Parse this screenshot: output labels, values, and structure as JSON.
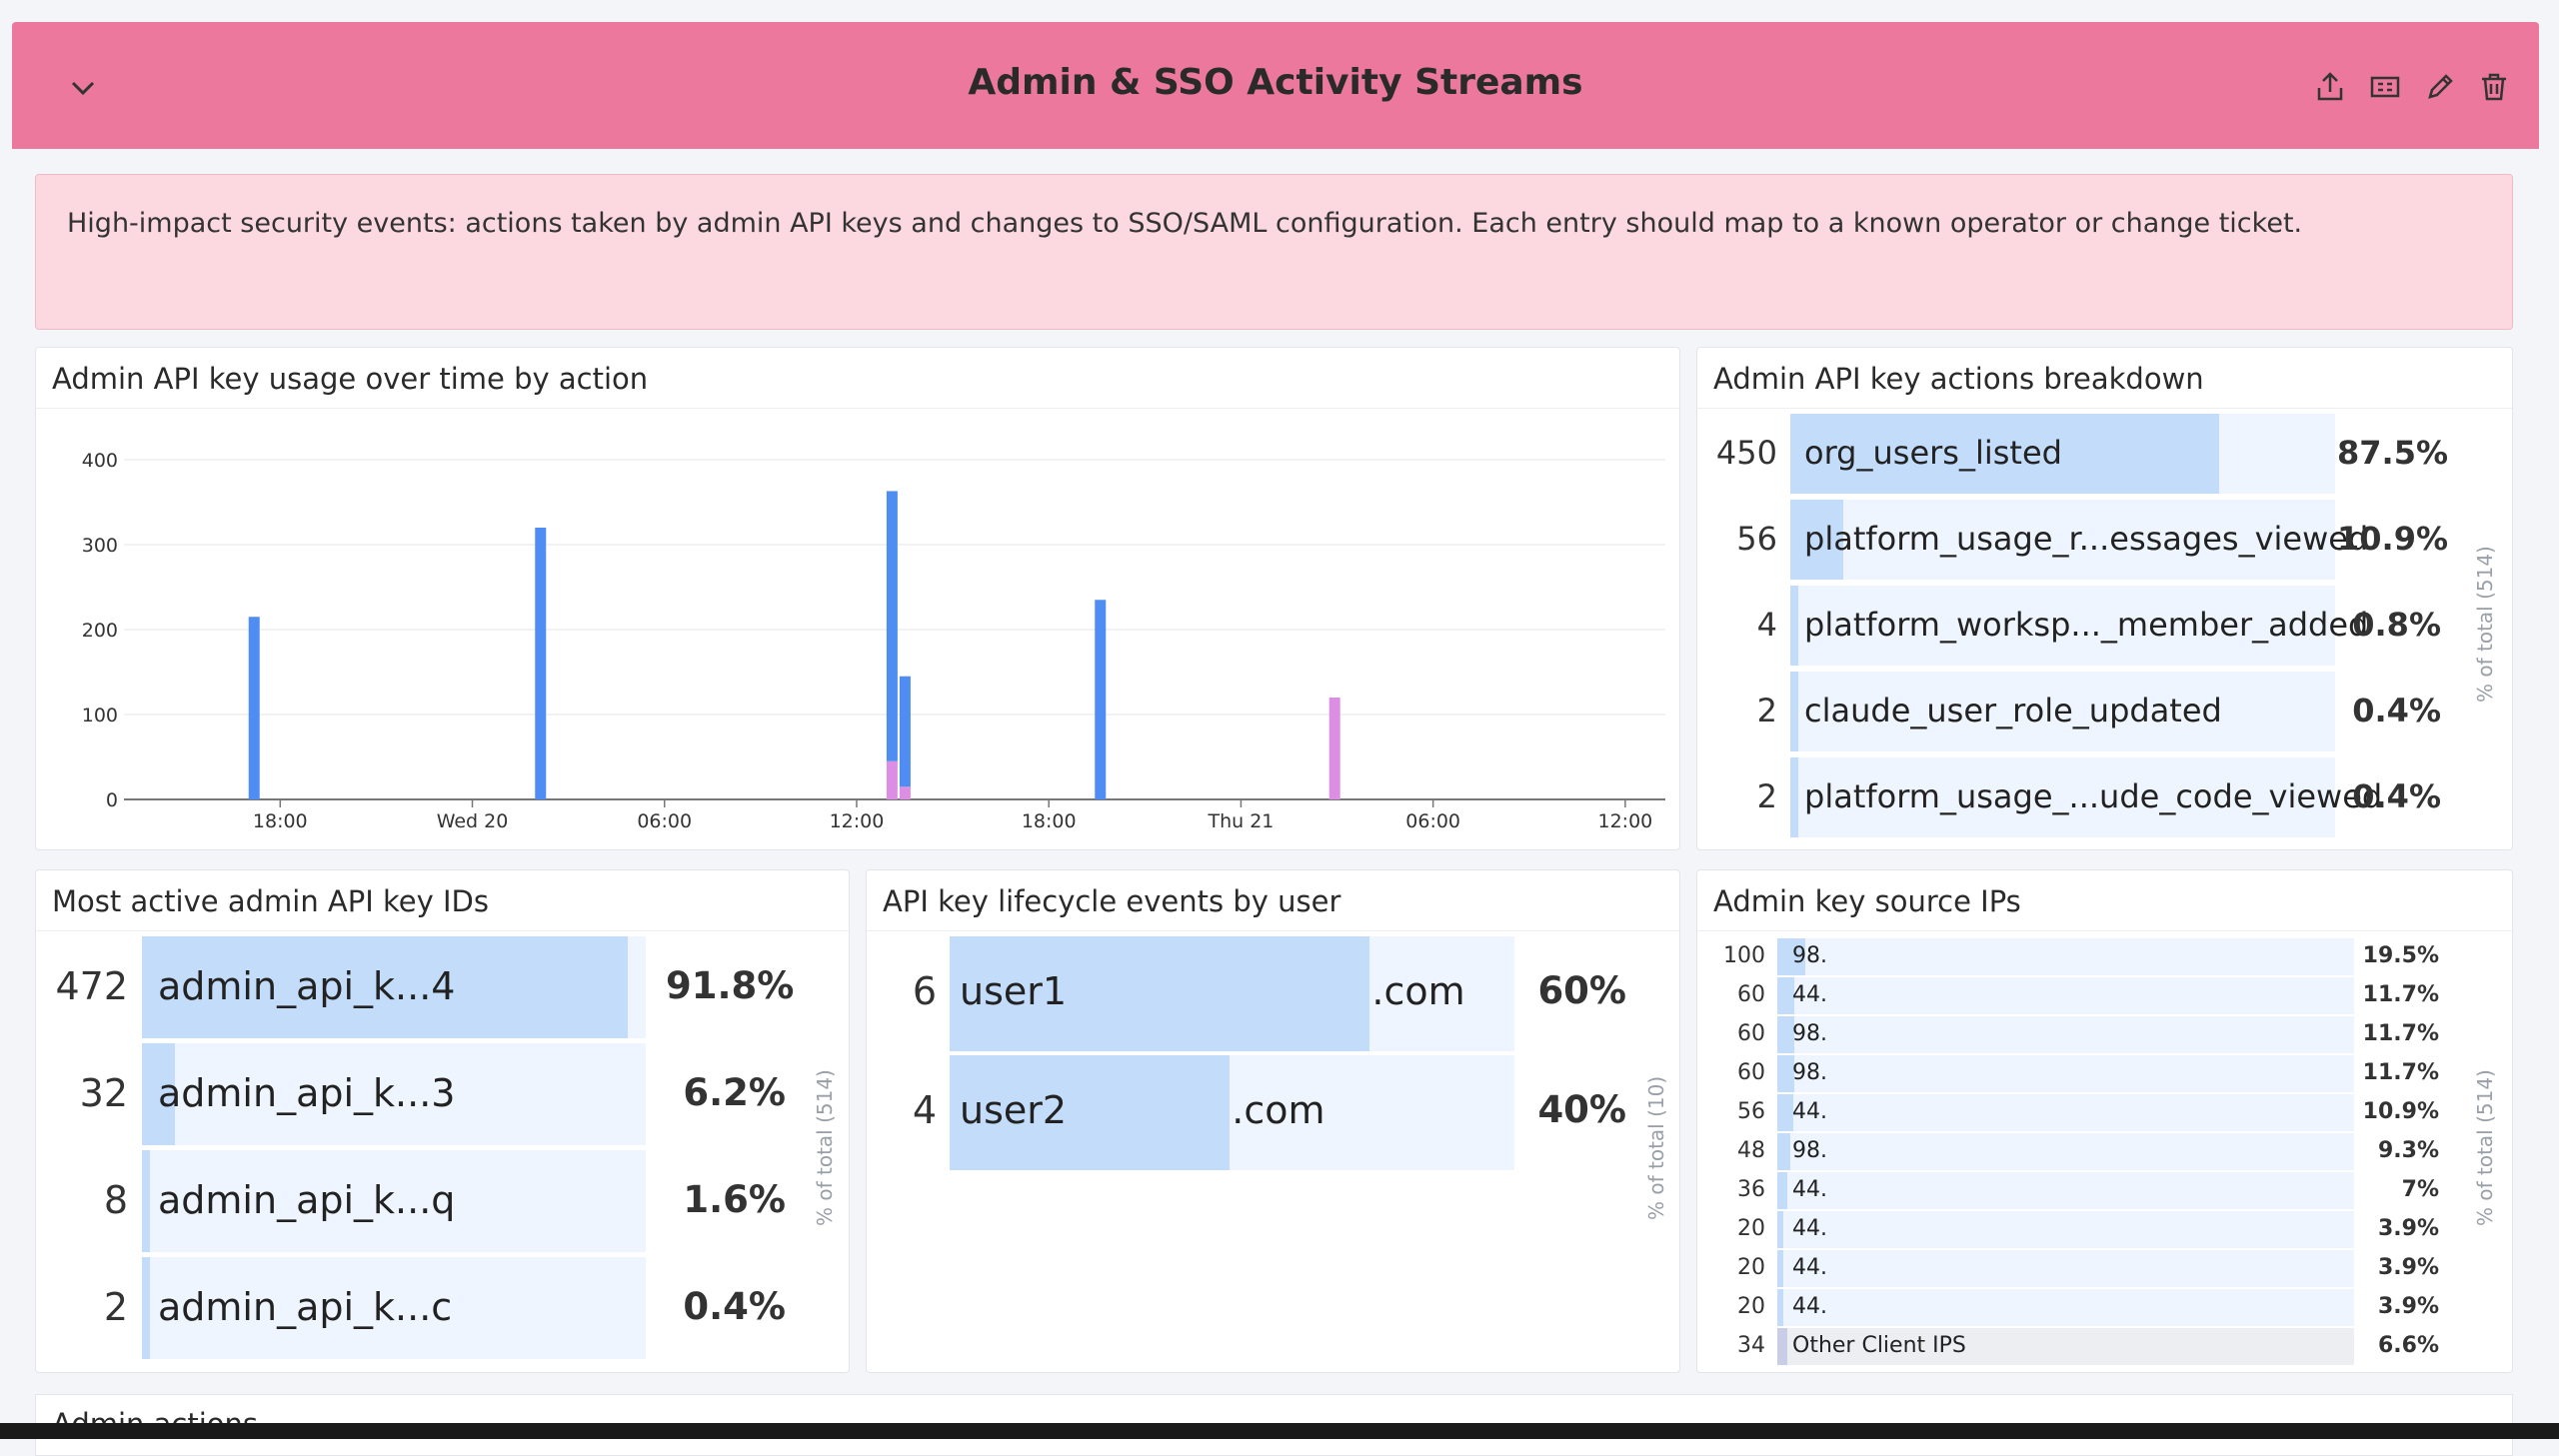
{
  "header": {
    "title": "Admin & SSO Activity Streams",
    "color": "#ec789d",
    "icons": [
      "chevron-down-icon",
      "share-icon",
      "clone-icon",
      "edit-icon",
      "delete-icon"
    ]
  },
  "notice": {
    "text": "High-impact security events: actions taken by admin API keys and changes to SSO/SAML configuration. Each entry should map to a known operator or change ticket."
  },
  "usage_chart": {
    "title": "Admin API key usage over time by action",
    "chart_data": {
      "type": "bar",
      "title": "Admin API key usage over time by action",
      "x_ticks": [
        "18:00",
        "Wed 20",
        "06:00",
        "12:00",
        "18:00",
        "Thu 21",
        "06:00",
        "12:00"
      ],
      "y_ticks": [
        "0",
        "100",
        "200",
        "300",
        "400"
      ],
      "ylim": [
        0,
        400
      ],
      "grid": true,
      "bars": [
        {
          "t": 2.5,
          "blue": 215,
          "pink": 0
        },
        {
          "t": 8.0,
          "blue": 320,
          "pink": 0
        },
        {
          "t": 14.75,
          "blue": 318,
          "pink": 45
        },
        {
          "t": 15.0,
          "blue": 130,
          "pink": 15
        },
        {
          "t": 18.75,
          "blue": 235,
          "pink": 0
        },
        {
          "t": 23.25,
          "blue": 0,
          "pink": 120
        }
      ],
      "x_range_hours": [
        0,
        29.6
      ],
      "series_colors": {
        "blue": "#4f8df2",
        "pink": "#dc8ee3"
      }
    }
  },
  "actions_breakdown": {
    "title": "Admin API key actions breakdown",
    "axis_label": "% of total (514)",
    "rows": [
      {
        "count": "450",
        "label": "org_users_listed",
        "pct": "87.5%",
        "fraction": 0.875
      },
      {
        "count": "56",
        "label": "platform_usage_r...essages_viewed",
        "pct": "10.9%",
        "fraction": 0.109
      },
      {
        "count": "4",
        "label": "platform_worksp..._member_added",
        "pct": "0.8%",
        "fraction": 0.008
      },
      {
        "count": "2",
        "label": "claude_user_role_updated",
        "pct": "0.4%",
        "fraction": 0.004
      },
      {
        "count": "2",
        "label": "platform_usage_...ude_code_viewed",
        "pct": "0.4%",
        "fraction": 0.004
      }
    ]
  },
  "key_ids": {
    "title": "Most active admin API key IDs",
    "axis_label": "% of total (514)",
    "rows": [
      {
        "count": "472",
        "label": "admin_api_k...4",
        "pct": "91.8%",
        "fraction": 0.918
      },
      {
        "count": "32",
        "label": "admin_api_k...3",
        "pct": "6.2%",
        "fraction": 0.062
      },
      {
        "count": "8",
        "label": "admin_api_k...q",
        "pct": "1.6%",
        "fraction": 0.016
      },
      {
        "count": "2",
        "label": "admin_api_k...c",
        "pct": "0.4%",
        "fraction": 0.004
      }
    ]
  },
  "lifecycle": {
    "title": "API key lifecycle events by user",
    "axis_label": "% of total (10)",
    "rows": [
      {
        "count": "6",
        "label": "user1",
        "suffix": ".com",
        "pct": "60%",
        "fraction": 0.6
      },
      {
        "count": "4",
        "label": "user2",
        "suffix": ".com",
        "pct": "40%",
        "fraction": 0.4
      }
    ]
  },
  "source_ips": {
    "title": "Admin key source IPs",
    "axis_label": "% of total (514)",
    "rows": [
      {
        "count": "100",
        "label": "98.",
        "pct": "19.5%",
        "fraction": 0.195
      },
      {
        "count": "60",
        "label": "44.",
        "pct": "11.7%",
        "fraction": 0.117
      },
      {
        "count": "60",
        "label": "98.",
        "pct": "11.7%",
        "fraction": 0.117
      },
      {
        "count": "60",
        "label": "98.",
        "pct": "11.7%",
        "fraction": 0.117
      },
      {
        "count": "56",
        "label": "44.",
        "pct": "10.9%",
        "fraction": 0.109
      },
      {
        "count": "48",
        "label": "98.",
        "pct": "9.3%",
        "fraction": 0.093
      },
      {
        "count": "36",
        "label": "44.",
        "pct": "7%",
        "fraction": 0.07
      },
      {
        "count": "20",
        "label": "44.",
        "pct": "3.9%",
        "fraction": 0.039
      },
      {
        "count": "20",
        "label": "44.",
        "pct": "3.9%",
        "fraction": 0.039
      },
      {
        "count": "20",
        "label": "44.",
        "pct": "3.9%",
        "fraction": 0.039
      },
      {
        "count": "34",
        "label": "Other Client IPS",
        "pct": "6.6%",
        "fraction": 0.066,
        "other": true
      }
    ]
  },
  "admin_actions": {
    "title": "Admin actions"
  }
}
